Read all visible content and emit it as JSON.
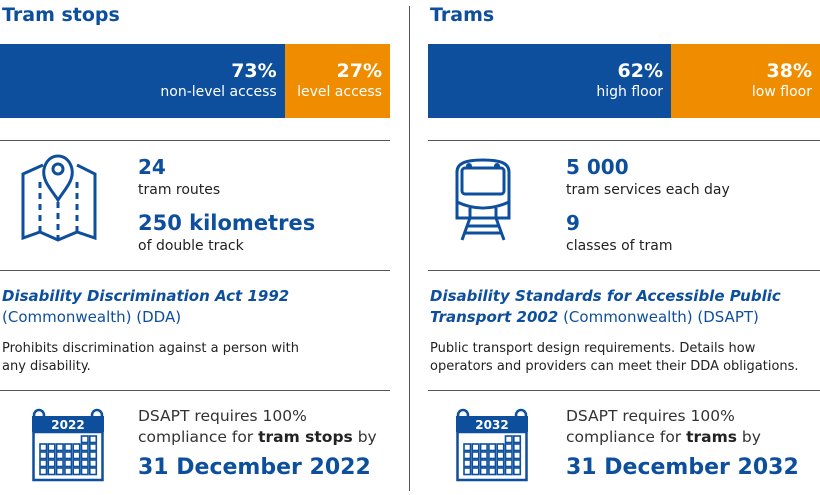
{
  "colors": {
    "blue": "#0d4f9c",
    "orange": "#ef8c00"
  },
  "tram_stops": {
    "heading": "Tram stops",
    "bar": [
      {
        "percent": 73,
        "pct_label": "73%",
        "label": "non-level access",
        "color": "#0d4f9c"
      },
      {
        "percent": 27,
        "pct_label": "27%",
        "label": "level access",
        "color": "#ef8c00"
      }
    ],
    "icon": "map-pin-icon",
    "stat1": {
      "value": "24",
      "label": "tram routes"
    },
    "stat2": {
      "value": "250 kilometres",
      "label": "of double track"
    },
    "act": {
      "title": "Disability Discrimination Act 1992",
      "suffix": "(Commonwealth) (DDA)"
    },
    "desc": "Prohibits discrimination against a person with any disability.",
    "calendar_year": "2022",
    "req_pre": "DSAPT requires 100% compliance for ",
    "req_bold": "tram stops",
    "req_post": " by",
    "date": "31 December 2022"
  },
  "trams": {
    "heading": "Trams",
    "bar": [
      {
        "percent": 62,
        "pct_label": "62%",
        "label": "high floor",
        "color": "#0d4f9c"
      },
      {
        "percent": 38,
        "pct_label": "38%",
        "label": "low floor",
        "color": "#ef8c00"
      }
    ],
    "icon": "tram-icon",
    "stat1": {
      "value": "5 000",
      "label": "tram services each day"
    },
    "stat2": {
      "value": "9",
      "label": "classes of tram"
    },
    "act": {
      "title": "Disability Standards for Accessible Public Transport 2002",
      "suffix": "(Commonwealth) (DSAPT)"
    },
    "desc": "Public transport design requirements. Details how operators and providers can meet their DDA obligations.",
    "calendar_year": "2032",
    "req_pre": "DSAPT requires 100% compliance for ",
    "req_bold": "trams",
    "req_post": " by",
    "date": "31 December 2032"
  }
}
